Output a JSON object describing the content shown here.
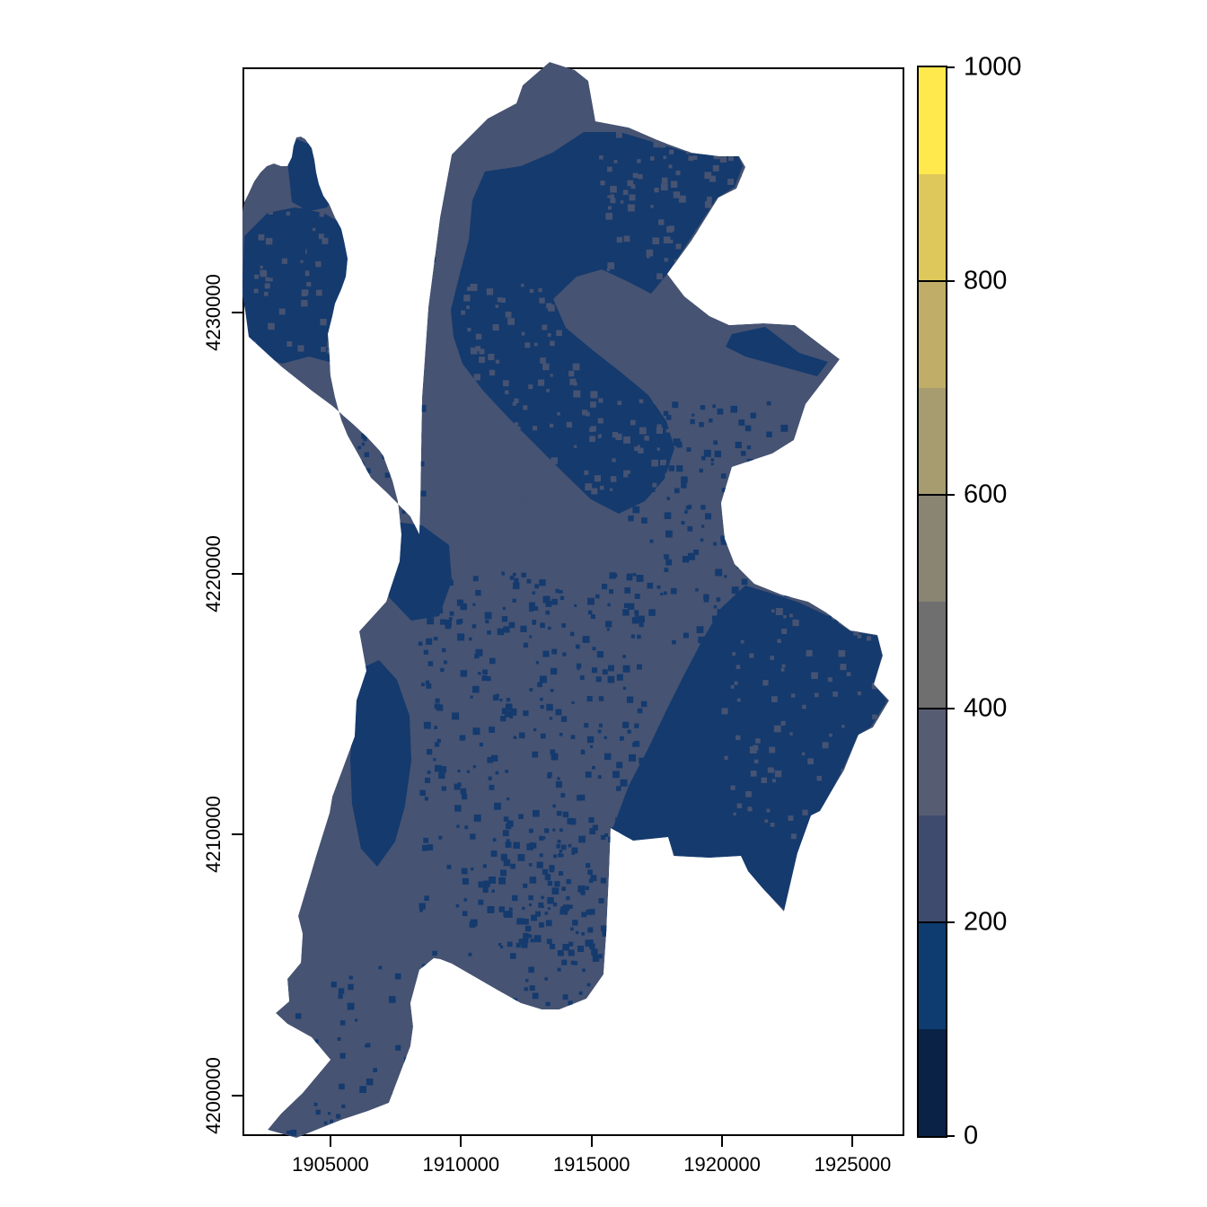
{
  "figure": {
    "background": "#ffffff",
    "frame_color": "#000000",
    "description": "Raster map of a municipal region plotted with projected coordinates and an elevation-style color scale"
  },
  "chart_data": {
    "type": "heatmap",
    "title": "",
    "xlabel": "",
    "ylabel": "",
    "x_axis": {
      "tick_labels": [
        "1905000",
        "1910000",
        "1915000",
        "1920000",
        "1925000"
      ],
      "tick_values": [
        1905000,
        1910000,
        1915000,
        1920000,
        1925000
      ],
      "range": [
        1901630,
        1926980
      ]
    },
    "y_axis": {
      "tick_labels": [
        "4230000",
        "4220000",
        "4210000",
        "4200000"
      ],
      "tick_values": [
        4230000,
        4220000,
        4210000,
        4200000
      ],
      "range": [
        4198450,
        4239390
      ]
    },
    "legend": {
      "tick_labels": [
        "1000",
        "800",
        "600",
        "400",
        "200",
        "0"
      ],
      "tick_values": [
        1000,
        800,
        600,
        400,
        200,
        0
      ],
      "range": [
        0,
        1000
      ],
      "segments_low_to_high": [
        {
          "from": 0,
          "to": 100,
          "color": "#0A2245"
        },
        {
          "from": 100,
          "to": 200,
          "color": "#0E3C70"
        },
        {
          "from": 200,
          "to": 300,
          "color": "#3E4B6E"
        },
        {
          "from": 300,
          "to": 400,
          "color": "#565D73"
        },
        {
          "from": 400,
          "to": 500,
          "color": "#6F6F6F"
        },
        {
          "from": 500,
          "to": 600,
          "color": "#8A8473"
        },
        {
          "from": 600,
          "to": 700,
          "color": "#A79B70"
        },
        {
          "from": 700,
          "to": 800,
          "color": "#C0AE68"
        },
        {
          "from": 800,
          "to": 900,
          "color": "#DEC85C"
        },
        {
          "from": 900,
          "to": 1000,
          "color": "#FFE94D"
        }
      ]
    },
    "map_colors": {
      "low": "#143A6E",
      "mid": "#465372"
    },
    "observed_value_bands_on_map": [
      "100-200",
      "200-400"
    ]
  }
}
